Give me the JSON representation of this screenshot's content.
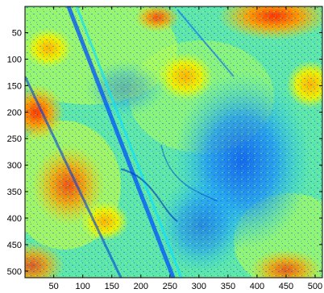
{
  "chart_data": {
    "type": "heatmap",
    "title": "",
    "xlabel": "",
    "ylabel": "",
    "xlim": [
      1,
      512
    ],
    "ylim": [
      512,
      1
    ],
    "y_direction": "reverse",
    "colormap": "jet",
    "grid": false,
    "colorbar": false,
    "x_ticks": [
      50,
      100,
      150,
      200,
      250,
      300,
      350,
      400,
      450,
      500
    ],
    "y_ticks": [
      50,
      100,
      150,
      200,
      250,
      300,
      350,
      400,
      450,
      500
    ],
    "x_tick_labels": [
      "50",
      "100",
      "150",
      "200",
      "250",
      "300",
      "350",
      "400",
      "450",
      "500"
    ],
    "y_tick_labels": [
      "50",
      "100",
      "150",
      "200",
      "250",
      "300",
      "350",
      "400",
      "450",
      "500"
    ]
  }
}
